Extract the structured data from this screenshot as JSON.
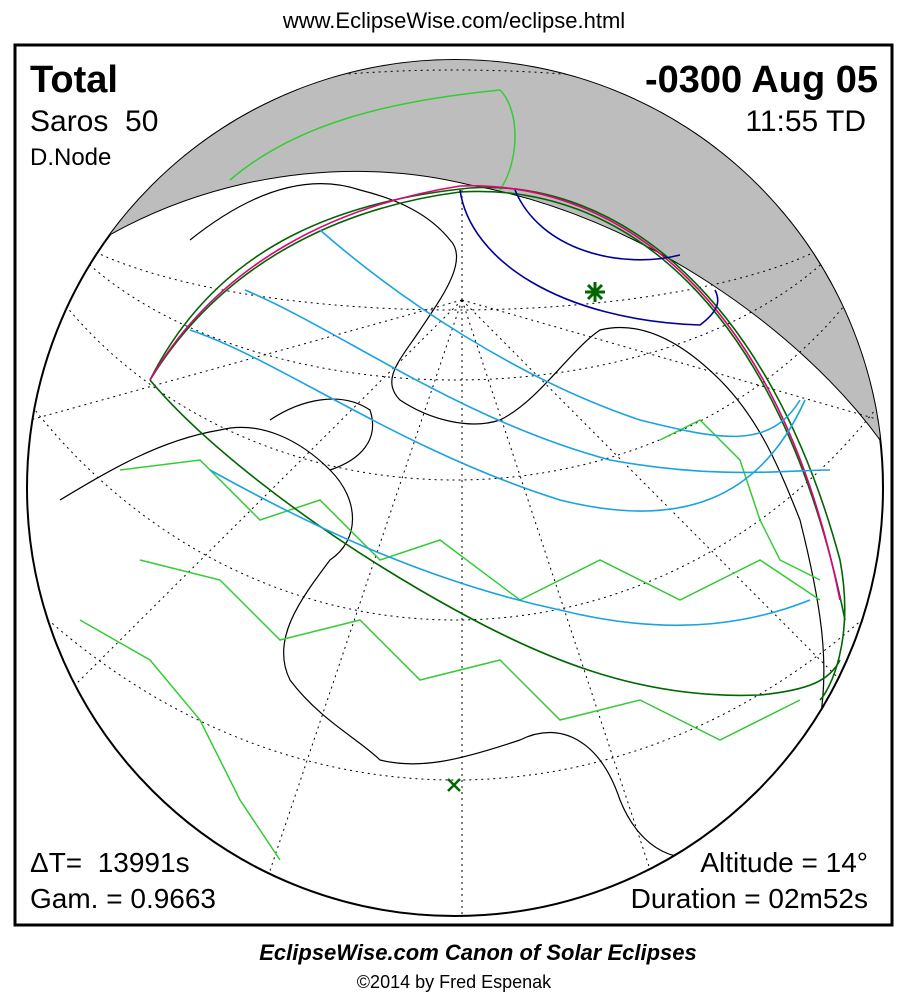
{
  "header": {
    "url": "www.EclipseWise.com/eclipse.html"
  },
  "eclipse": {
    "type": "Total",
    "saros": "Saros  50",
    "node": "D.Node",
    "date": "-0300 Aug 05",
    "time": "11:55 TD",
    "delta_t": "ΔT=  13991s",
    "gamma": "Gam. = 0.9663",
    "altitude": "Altitude = 14°",
    "duration": "Duration = 02m52s"
  },
  "footer": {
    "title": "EclipseWise.com Canon of Solar Eclipses",
    "copyright": "©2014 by Fred Espenak"
  }
}
